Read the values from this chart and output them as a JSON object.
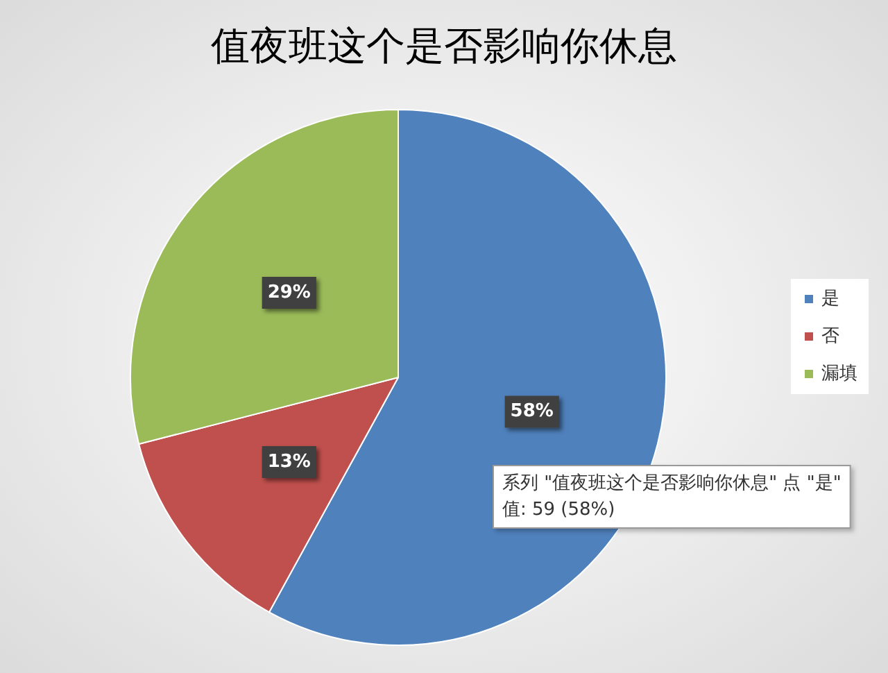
{
  "chart_data": {
    "type": "pie",
    "title": "值夜班这个是否影响你休息",
    "categories": [
      "是",
      "否",
      "漏填"
    ],
    "values": [
      58,
      13,
      29
    ],
    "colors": [
      "#4f81bd",
      "#c0504d",
      "#9bbb59"
    ],
    "value_labels": [
      "58%",
      "13%",
      "29%"
    ],
    "legend": "right",
    "annotations": [
      "系列 \"值夜班这个是否影响你休息\" 点 \"是\"\n值: 59 (58%)"
    ]
  }
}
